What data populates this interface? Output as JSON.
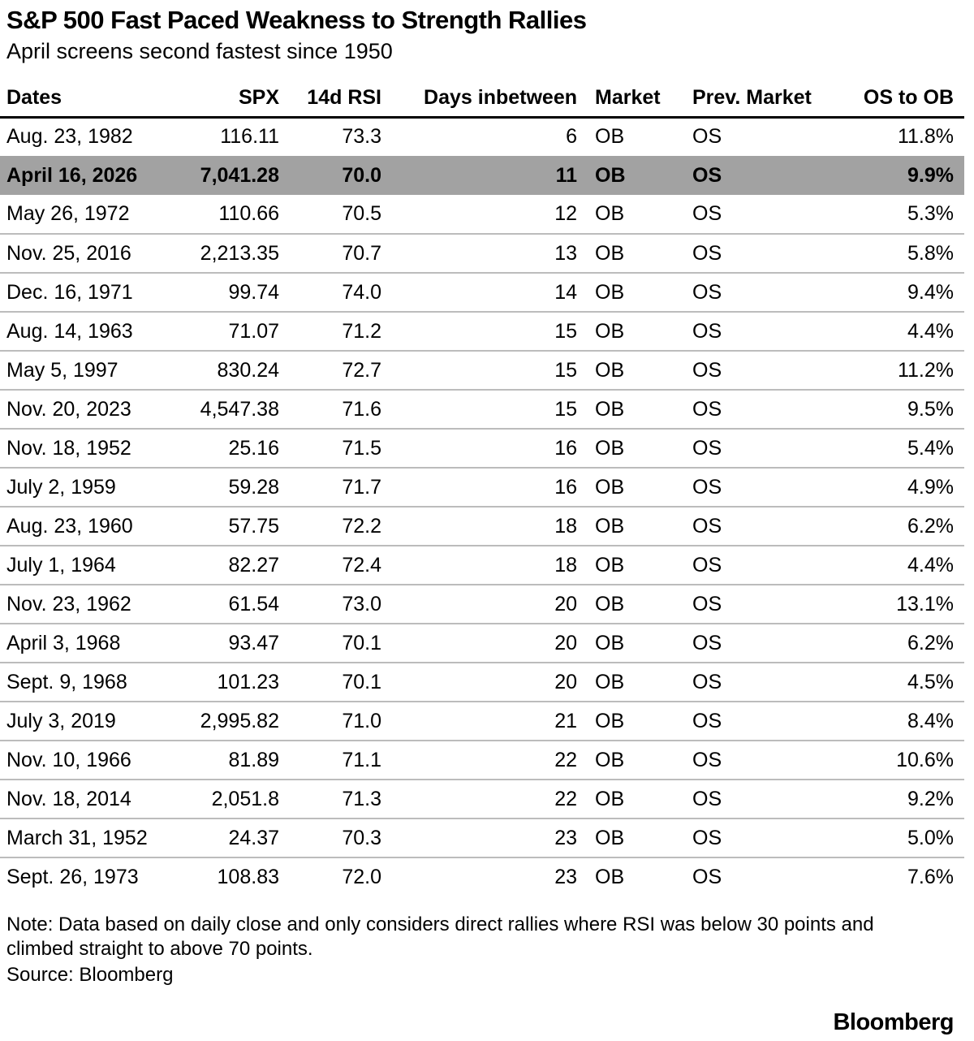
{
  "header": {
    "title": "S&P 500 Fast Paced Weakness to Strength Rallies",
    "subtitle": "April screens second fastest since 1950"
  },
  "chart_data": {
    "type": "table",
    "title": "S&P 500 Fast Paced Weakness to Strength Rallies",
    "subtitle": "April screens second fastest since 1950",
    "columns": [
      "Dates",
      "SPX",
      "14d RSI",
      "Days inbetween",
      "Market",
      "Prev. Market",
      "OS to OB"
    ],
    "rows": [
      [
        "Aug. 23, 1982",
        "116.11",
        "73.3",
        "6",
        "OB",
        "OS",
        "11.8%"
      ],
      [
        "April 16, 2026",
        "7,041.28",
        "70.0",
        "11",
        "OB",
        "OS",
        "9.9%"
      ],
      [
        "May 26, 1972",
        "110.66",
        "70.5",
        "12",
        "OB",
        "OS",
        "5.3%"
      ],
      [
        "Nov. 25, 2016",
        "2,213.35",
        "70.7",
        "13",
        "OB",
        "OS",
        "5.8%"
      ],
      [
        "Dec. 16, 1971",
        "99.74",
        "74.0",
        "14",
        "OB",
        "OS",
        "9.4%"
      ],
      [
        "Aug. 14, 1963",
        "71.07",
        "71.2",
        "15",
        "OB",
        "OS",
        "4.4%"
      ],
      [
        "May 5, 1997",
        "830.24",
        "72.7",
        "15",
        "OB",
        "OS",
        "11.2%"
      ],
      [
        "Nov. 20, 2023",
        "4,547.38",
        "71.6",
        "15",
        "OB",
        "OS",
        "9.5%"
      ],
      [
        "Nov. 18, 1952",
        "25.16",
        "71.5",
        "16",
        "OB",
        "OS",
        "5.4%"
      ],
      [
        "July 2, 1959",
        "59.28",
        "71.7",
        "16",
        "OB",
        "OS",
        "4.9%"
      ],
      [
        "Aug. 23, 1960",
        "57.75",
        "72.2",
        "18",
        "OB",
        "OS",
        "6.2%"
      ],
      [
        "July 1, 1964",
        "82.27",
        "72.4",
        "18",
        "OB",
        "OS",
        "4.4%"
      ],
      [
        "Nov. 23, 1962",
        "61.54",
        "73.0",
        "20",
        "OB",
        "OS",
        "13.1%"
      ],
      [
        "April 3, 1968",
        "93.47",
        "70.1",
        "20",
        "OB",
        "OS",
        "6.2%"
      ],
      [
        "Sept. 9, 1968",
        "101.23",
        "70.1",
        "20",
        "OB",
        "OS",
        "4.5%"
      ],
      [
        "July 3, 2019",
        "2,995.82",
        "71.0",
        "21",
        "OB",
        "OS",
        "8.4%"
      ],
      [
        "Nov. 10, 1966",
        "81.89",
        "71.1",
        "22",
        "OB",
        "OS",
        "10.6%"
      ],
      [
        "Nov. 18, 2014",
        "2,051.8",
        "71.3",
        "22",
        "OB",
        "OS",
        "9.2%"
      ],
      [
        "March 31, 1952",
        "24.37",
        "70.3",
        "23",
        "OB",
        "OS",
        "5.0%"
      ],
      [
        "Sept. 26, 1973",
        "108.83",
        "72.0",
        "23",
        "OB",
        "OS",
        "7.6%"
      ]
    ],
    "highlighted_row_index": 1,
    "note": "Note: Data based on daily close and only considers direct rallies where RSI was below 30 points and climbed straight to above 70 points.",
    "source": "Source: Bloomberg"
  },
  "footer": {
    "note": "Note: Data based on daily close and only considers direct rallies where RSI was below 30 points and climbed straight to above 70 points.",
    "source": "Source: Bloomberg",
    "brand": "Bloomberg"
  },
  "colors": {
    "highlight_row": "#a2a2a2",
    "separator": "#bcbcbc",
    "header_rule": "#000000",
    "text": "#000000"
  }
}
